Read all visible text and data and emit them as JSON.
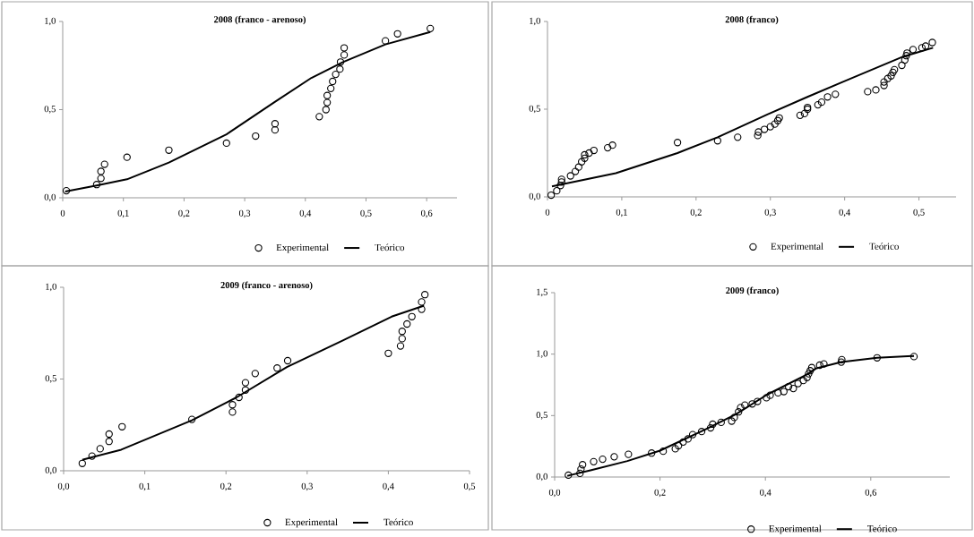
{
  "chart_data": [
    {
      "type": "scatter",
      "title": "2008 (franco - arenoso)",
      "xlim": [
        0,
        0.65
      ],
      "ylim": [
        0,
        1
      ],
      "legend": "bottom",
      "xticks": [
        0,
        {
          "value": 0.1,
          "label": "0,1"
        },
        {
          "value": 0.2,
          "label": "0,2"
        },
        {
          "value": 0.3,
          "label": "0,3"
        },
        {
          "value": 0.4,
          "label": "0,4"
        },
        {
          "value": 0.5,
          "label": "0,5"
        },
        {
          "value": 0.6,
          "label": "0,6"
        }
      ],
      "yticks": [
        {
          "value": 0,
          "label": "0,0"
        },
        {
          "value": 0.5,
          "label": "0,5"
        },
        {
          "value": 1,
          "label": "1,0"
        }
      ],
      "series": [
        {
          "name": "Experimental",
          "type": "scatter",
          "marker": "circle",
          "color": "#000000",
          "x": [
            0.006,
            0.056,
            0.063,
            0.063,
            0.069,
            0.106,
            0.175,
            0.27,
            0.318,
            0.35,
            0.35,
            0.423,
            0.434,
            0.436,
            0.436,
            0.442,
            0.445,
            0.45,
            0.457,
            0.458,
            0.464,
            0.464,
            0.532,
            0.552,
            0.606
          ],
          "values": [
            0.04,
            0.075,
            0.11,
            0.15,
            0.19,
            0.23,
            0.27,
            0.31,
            0.35,
            0.385,
            0.42,
            0.46,
            0.5,
            0.54,
            0.58,
            0.62,
            0.66,
            0.7,
            0.73,
            0.77,
            0.81,
            0.85,
            0.89,
            0.93,
            0.96
          ]
        },
        {
          "name": "Teórico",
          "type": "line",
          "marker": "none",
          "color": "#000000",
          "x": [
            0.004,
            0.056,
            0.106,
            0.175,
            0.27,
            0.348,
            0.41,
            0.462,
            0.532,
            0.606
          ],
          "values": [
            0.035,
            0.07,
            0.105,
            0.2,
            0.36,
            0.54,
            0.68,
            0.77,
            0.87,
            0.94
          ]
        }
      ]
    },
    {
      "type": "scatter",
      "title": "2008 (franco)",
      "xlim": [
        0,
        0.55
      ],
      "ylim": [
        0,
        1
      ],
      "legend": "bottom",
      "xticks": [
        0,
        {
          "value": 0.1,
          "label": "0,1"
        },
        {
          "value": 0.2,
          "label": "0,2"
        },
        {
          "value": 0.3,
          "label": "0,3"
        },
        {
          "value": 0.4,
          "label": "0,4"
        },
        {
          "value": 0.5,
          "label": "0,5"
        }
      ],
      "yticks": [
        {
          "value": 0,
          "label": "0,0"
        },
        {
          "value": 0.5,
          "label": "0,5"
        },
        {
          "value": 1,
          "label": "1,0"
        }
      ],
      "series": [
        {
          "name": "Experimental",
          "type": "scatter",
          "marker": "circle",
          "color": "#000000",
          "x": [
            0.005,
            0.0125,
            0.0175,
            0.019,
            0.019,
            0.031,
            0.0375,
            0.042,
            0.046,
            0.05,
            0.05,
            0.056,
            0.0625,
            0.081,
            0.0875,
            0.175,
            0.229,
            0.256,
            0.283,
            0.284,
            0.292,
            0.3,
            0.306,
            0.31,
            0.312,
            0.34,
            0.346,
            0.35,
            0.35,
            0.364,
            0.369,
            0.377,
            0.3875,
            0.431,
            0.442,
            0.453,
            0.453,
            0.458,
            0.4625,
            0.465,
            0.467,
            0.477,
            0.481,
            0.483,
            0.484,
            0.492,
            0.504,
            0.509,
            0.518
          ],
          "values": [
            0.01,
            0.035,
            0.065,
            0.085,
            0.1,
            0.12,
            0.145,
            0.17,
            0.2,
            0.22,
            0.24,
            0.25,
            0.265,
            0.28,
            0.295,
            0.31,
            0.32,
            0.34,
            0.35,
            0.37,
            0.385,
            0.4,
            0.415,
            0.435,
            0.45,
            0.465,
            0.475,
            0.5,
            0.51,
            0.525,
            0.54,
            0.57,
            0.585,
            0.6,
            0.61,
            0.635,
            0.655,
            0.675,
            0.69,
            0.71,
            0.725,
            0.75,
            0.78,
            0.805,
            0.82,
            0.84,
            0.85,
            0.86,
            0.88
          ]
        },
        {
          "name": "Teórico",
          "type": "line",
          "marker": "none",
          "color": "#000000",
          "x": [
            0.006,
            0.092,
            0.175,
            0.229,
            0.296,
            0.35,
            0.4,
            0.479,
            0.519
          ],
          "values": [
            0.06,
            0.135,
            0.25,
            0.34,
            0.47,
            0.57,
            0.66,
            0.8,
            0.85
          ]
        }
      ]
    },
    {
      "type": "scatter",
      "title": "2009 (franco - arenoso)",
      "xlim": [
        0,
        0.5
      ],
      "ylim": [
        0,
        1
      ],
      "legend": "bottom",
      "xticks": [
        {
          "value": 0,
          "label": "0,0"
        },
        {
          "value": 0.1,
          "label": "0,1"
        },
        {
          "value": 0.2,
          "label": "0,2"
        },
        {
          "value": 0.3,
          "label": "0,3"
        },
        {
          "value": 0.4,
          "label": "0,4"
        },
        {
          "value": 0.5,
          "label": "0,5"
        }
      ],
      "yticks": [
        {
          "value": 0,
          "label": "0,0"
        },
        {
          "value": 0.5,
          "label": "0,5"
        },
        {
          "value": 1,
          "label": "1,0"
        }
      ],
      "series": [
        {
          "name": "Experimental",
          "type": "scatter",
          "marker": "circle",
          "color": "#000000",
          "x": [
            0.023,
            0.035,
            0.045,
            0.056,
            0.056,
            0.072,
            0.158,
            0.208,
            0.208,
            0.216,
            0.224,
            0.224,
            0.236,
            0.263,
            0.276,
            0.4,
            0.415,
            0.417,
            0.417,
            0.423,
            0.429,
            0.441,
            0.441,
            0.445
          ],
          "values": [
            0.04,
            0.08,
            0.12,
            0.16,
            0.2,
            0.24,
            0.28,
            0.32,
            0.36,
            0.4,
            0.44,
            0.48,
            0.53,
            0.56,
            0.6,
            0.64,
            0.68,
            0.72,
            0.76,
            0.8,
            0.84,
            0.88,
            0.92,
            0.96
          ]
        },
        {
          "name": "Teórico",
          "type": "line",
          "marker": "none",
          "color": "#000000",
          "x": [
            0.023,
            0.071,
            0.158,
            0.213,
            0.275,
            0.344,
            0.404,
            0.444
          ],
          "values": [
            0.06,
            0.115,
            0.275,
            0.4,
            0.565,
            0.71,
            0.84,
            0.9
          ]
        }
      ]
    },
    {
      "type": "scatter",
      "title": "2009 (franco)",
      "xlim": [
        0,
        0.75
      ],
      "ylim": [
        0,
        1.5
      ],
      "legend": "bottom",
      "xticks": [
        {
          "value": 0,
          "label": "0,0"
        },
        {
          "value": 0.2,
          "label": "0,2"
        },
        {
          "value": 0.4,
          "label": "0,4"
        },
        {
          "value": 0.6,
          "label": "0,6"
        }
      ],
      "yticks": [
        {
          "value": 0,
          "label": "0,0"
        },
        {
          "value": 0.5,
          "label": "0,5"
        },
        {
          "value": 1,
          "label": "1,0"
        },
        {
          "value": 1.5,
          "label": "1,5"
        }
      ],
      "series": [
        {
          "name": "Experimental",
          "type": "scatter",
          "marker": "circle",
          "color": "#000000",
          "x": [
            0.026,
            0.048,
            0.05,
            0.053,
            0.074,
            0.091,
            0.113,
            0.14,
            0.184,
            0.206,
            0.229,
            0.235,
            0.244,
            0.253,
            0.262,
            0.279,
            0.296,
            0.3,
            0.316,
            0.336,
            0.341,
            0.349,
            0.353,
            0.361,
            0.375,
            0.385,
            0.402,
            0.409,
            0.424,
            0.435,
            0.444,
            0.453,
            0.462,
            0.472,
            0.479,
            0.482,
            0.485,
            0.488,
            0.503,
            0.511,
            0.544,
            0.545,
            0.612,
            0.682
          ],
          "values": [
            0.015,
            0.03,
            0.065,
            0.1,
            0.125,
            0.145,
            0.165,
            0.185,
            0.195,
            0.21,
            0.23,
            0.255,
            0.285,
            0.31,
            0.345,
            0.37,
            0.4,
            0.43,
            0.445,
            0.455,
            0.485,
            0.53,
            0.565,
            0.585,
            0.595,
            0.615,
            0.645,
            0.665,
            0.685,
            0.695,
            0.735,
            0.72,
            0.76,
            0.785,
            0.81,
            0.84,
            0.865,
            0.89,
            0.91,
            0.92,
            0.935,
            0.955,
            0.97,
            0.98
          ]
        },
        {
          "name": "Teórico",
          "type": "line",
          "marker": "none",
          "color": "#000000",
          "x": [
            0.024,
            0.068,
            0.138,
            0.2,
            0.285,
            0.344,
            0.403,
            0.479,
            0.497,
            0.544,
            0.612,
            0.682
          ],
          "values": [
            0.01,
            0.055,
            0.13,
            0.215,
            0.385,
            0.51,
            0.67,
            0.835,
            0.885,
            0.935,
            0.97,
            0.985
          ]
        }
      ]
    }
  ]
}
